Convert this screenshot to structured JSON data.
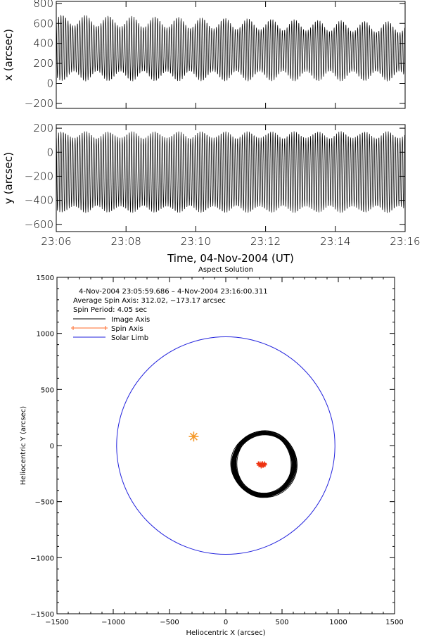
{
  "chart_data": [
    {
      "type": "line",
      "panel": "x-vs-time",
      "ylabel": "x (arcsec)",
      "xlabel": "",
      "ylim": [
        -250,
        820
      ],
      "yticks": [
        "800",
        "600",
        "400",
        "200",
        "0",
        "−200"
      ],
      "ytick_values": [
        800,
        600,
        400,
        200,
        0,
        -200
      ],
      "xlim": [
        0,
        600
      ],
      "xticks_seconds": [
        0,
        120,
        240,
        360,
        480,
        600
      ],
      "spin_period_s": 4.05,
      "series": [
        {
          "center": 360,
          "upper_envelope_range": [
            580,
            690
          ],
          "lower_envelope_range": [
            20,
            120
          ],
          "envelope_period_s": 40,
          "color": "#000000"
        }
      ]
    },
    {
      "type": "line",
      "panel": "y-vs-time",
      "ylabel": "y (arcsec)",
      "xlabel": "Time, 04-Nov-2004 (UT)",
      "ylim": [
        -660,
        230
      ],
      "yticks": [
        "200",
        "0",
        "−200",
        "−400",
        "−600"
      ],
      "ytick_values": [
        200,
        0,
        -200,
        -400,
        -600
      ],
      "xlim": [
        0,
        600
      ],
      "xticks": [
        "23:06",
        "23:08",
        "23:10",
        "23:12",
        "23:14",
        "23:16"
      ],
      "xticks_seconds": [
        0,
        120,
        240,
        360,
        480,
        600
      ],
      "series": [
        {
          "center": -170,
          "upper_envelope_range": [
            120,
            175
          ],
          "lower_envelope_range": [
            -505,
            -450
          ],
          "envelope_period_s": 40,
          "color": "#000000"
        }
      ]
    },
    {
      "type": "scatter",
      "panel": "aspect-solution",
      "title": "Aspect Solution",
      "xlabel": "Heliocentric X (arcsec)",
      "ylabel": "Heliocentric Y (arcsec)",
      "xlim": [
        -1500,
        1500
      ],
      "ylim": [
        -1500,
        1500
      ],
      "xticks": [
        "−1500",
        "−1000",
        "−500",
        "0",
        "500",
        "1000",
        "1500"
      ],
      "xtick_values": [
        -1500,
        -1000,
        -500,
        0,
        500,
        1000,
        1500
      ],
      "yticks": [
        "1500",
        "1000",
        "500",
        "0",
        "−500",
        "−1000",
        "−1500"
      ],
      "ytick_values": [
        1500,
        1000,
        500,
        0,
        -500,
        -1000,
        -1500
      ],
      "info_lines": [
        "4-Nov-2004 23:05:59.686  –  4-Nov-2004 23:16:00.311",
        "Average Spin Axis: 312.02, −173.17 arcsec",
        "Spin Period: 4.05 sec"
      ],
      "legend": [
        {
          "label": "Image Axis",
          "color": "#000000",
          "style": "line"
        },
        {
          "label": "Spin Axis",
          "color": "#ff6a2a",
          "style": "plus-line"
        },
        {
          "label": "Solar Limb",
          "color": "#2222dd",
          "style": "line"
        }
      ],
      "solar_limb": {
        "center": [
          0,
          0
        ],
        "radius": 970,
        "color": "#2222dd"
      },
      "image_axis_rings": {
        "center": [
          338,
          -165
        ],
        "radius_x_range": [
          250,
          285
        ],
        "radius_y_range": [
          270,
          295
        ],
        "count": 28,
        "color": "#000000"
      },
      "spin_axis_points": {
        "color": "#ee3311",
        "points": [
          [
            290,
            -160
          ],
          [
            300,
            -170
          ],
          [
            310,
            -175
          ],
          [
            320,
            -165
          ],
          [
            330,
            -180
          ],
          [
            340,
            -170
          ],
          [
            350,
            -172
          ],
          [
            315,
            -185
          ],
          [
            305,
            -160
          ],
          [
            325,
            -158
          ],
          [
            335,
            -178
          ],
          [
            295,
            -175
          ],
          [
            345,
            -160
          ],
          [
            312,
            -173
          ],
          [
            328,
            -168
          ]
        ]
      },
      "star_marker": {
        "x": -285,
        "y": 80,
        "color": "#f59a2c",
        "symbol": "asterisk"
      }
    }
  ]
}
